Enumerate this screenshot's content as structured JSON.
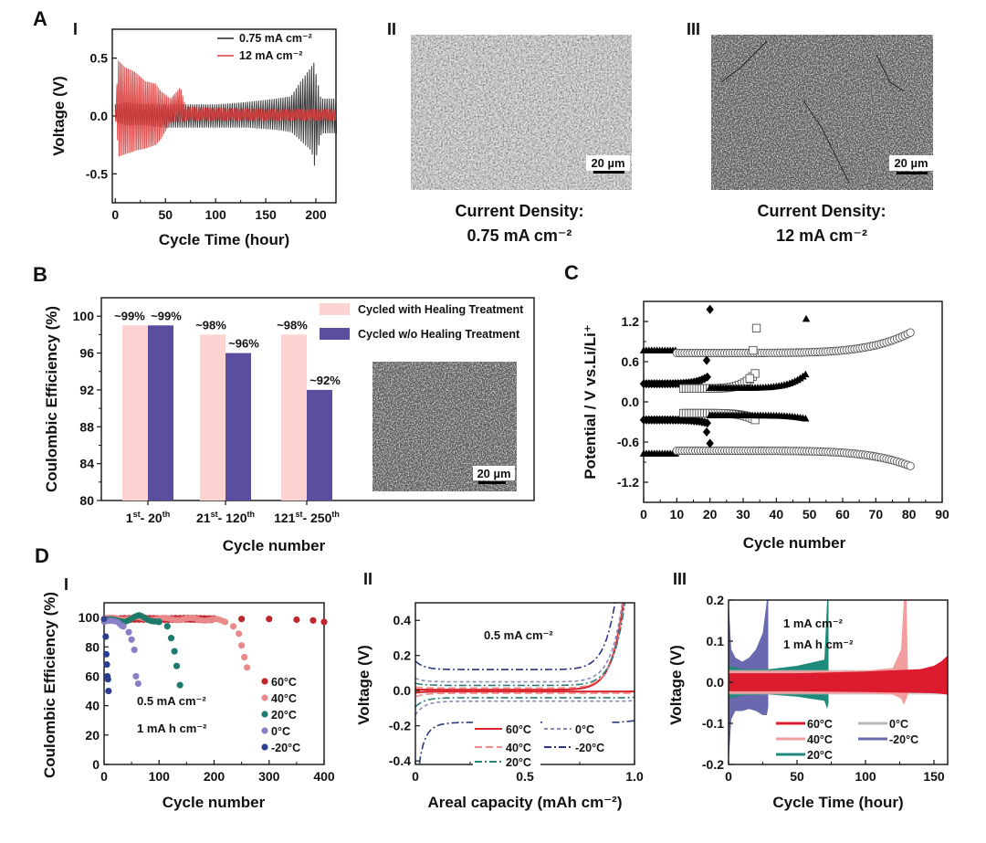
{
  "figure": {
    "panel_labels": {
      "A": "A",
      "B": "B",
      "C": "C",
      "D": "D"
    },
    "sub_labels": {
      "A_I": "I",
      "A_II": "II",
      "A_III": "III",
      "D_I": "I",
      "D_II": "II",
      "D_III": "III"
    }
  },
  "sem_images": {
    "A_II": {
      "scale_bar": "20 µm",
      "caption_line1": "Current Density:",
      "caption_line2": "0.75 mA cm⁻²",
      "tone": "light-porous"
    },
    "A_III": {
      "scale_bar": "20 µm",
      "caption_line1": "Current Density:",
      "caption_line2": "12 mA cm⁻²",
      "tone": "dark-dense"
    },
    "B_inset": {
      "scale_bar": "20 µm",
      "tone": "dark-dense"
    }
  },
  "chart_data": [
    {
      "id": "A_I",
      "type": "line",
      "title": "",
      "xlabel": "Cycle Time (hour)",
      "ylabel": "Voltage (V)",
      "xlim": [
        -3,
        220
      ],
      "ylim": [
        -0.75,
        0.75
      ],
      "xticks": [
        0,
        50,
        100,
        150,
        200
      ],
      "yticks": [
        -0.5,
        0.0,
        0.5
      ],
      "ytick_labels": [
        "-0.5",
        "0.0",
        "0.5"
      ],
      "legend": "top-right",
      "series": [
        {
          "name": "0.75 mA cm⁻²",
          "color": "#222222",
          "envelope": {
            "x": [
              0,
              10,
              30,
              50,
              80,
              100,
              130,
              160,
              175,
              185,
              195,
              198,
              205,
              220
            ],
            "upper": [
              0.1,
              0.12,
              0.1,
              0.1,
              0.1,
              0.1,
              0.12,
              0.15,
              0.17,
              0.3,
              0.42,
              0.46,
              0.15,
              0.15
            ],
            "lower": [
              -0.05,
              -0.08,
              -0.08,
              -0.1,
              -0.1,
              -0.1,
              -0.1,
              -0.12,
              -0.14,
              -0.22,
              -0.3,
              -0.43,
              -0.15,
              -0.15
            ]
          }
        },
        {
          "name": "12 mA cm⁻²",
          "color": "#d93a3a",
          "envelope": {
            "x": [
              0,
              3,
              10,
              20,
              30,
              40,
              45,
              55,
              65,
              70,
              100,
              150,
              200,
              220
            ],
            "upper": [
              0.05,
              0.48,
              0.42,
              0.38,
              0.3,
              0.28,
              0.22,
              0.15,
              0.25,
              0.08,
              0.07,
              0.06,
              0.06,
              0.06
            ],
            "lower": [
              -0.05,
              -0.35,
              -0.33,
              -0.3,
              -0.28,
              -0.25,
              -0.2,
              -0.05,
              -0.05,
              -0.04,
              -0.04,
              -0.04,
              -0.04,
              -0.04
            ]
          }
        }
      ]
    },
    {
      "id": "B",
      "type": "bar",
      "title": "",
      "xlabel": "Cycle number",
      "ylabel": "Coulombic Efficiency (%)",
      "ylim": [
        80,
        102
      ],
      "yticks": [
        80,
        84,
        88,
        92,
        96,
        100
      ],
      "categories": [
        {
          "main": "1",
          "sup1": "st",
          "mid": "- 20",
          "sup2": "th"
        },
        {
          "main": "21",
          "sup1": "st",
          "mid": "- 120",
          "sup2": "th"
        },
        {
          "main": "121",
          "sup1": "st",
          "mid": "- 250",
          "sup2": "th"
        }
      ],
      "legend": "top-right",
      "series": [
        {
          "name": "Cycled with Healing Treatment",
          "color": "#fdd3d2",
          "values": [
            99,
            98,
            98
          ],
          "labels": [
            "~99%",
            "~98%",
            "~98%"
          ]
        },
        {
          "name": "Cycled w/o Healing Treatment",
          "color": "#5a4f9e",
          "values": [
            99,
            96,
            92
          ],
          "labels": [
            "~99%",
            "~96%",
            "~92%"
          ]
        }
      ]
    },
    {
      "id": "C",
      "type": "scatter",
      "title": "",
      "xlabel": "Cycle number",
      "ylabel": "Potential / V vs.Li/Li⁺",
      "xlim": [
        0,
        90
      ],
      "ylim": [
        -1.5,
        1.5
      ],
      "xticks": [
        0,
        10,
        20,
        30,
        40,
        50,
        60,
        70,
        80,
        90
      ],
      "yticks": [
        -1.2,
        -0.6,
        0.0,
        0.6,
        1.2
      ],
      "ytick_labels": [
        "-1.2",
        "-0.6",
        "0.0",
        "0.6",
        "1.2"
      ],
      "series": [
        {
          "name": "filled-triangle-high",
          "marker": "triangle-filled",
          "x_range": [
            0,
            10
          ],
          "y_const": 0.77
        },
        {
          "name": "filled-triangle-low",
          "marker": "triangle-filled",
          "x_range": [
            0,
            10
          ],
          "y_const": -0.77
        },
        {
          "name": "open-circle",
          "marker": "circle-open",
          "x_range": [
            10,
            81
          ],
          "upper_base": 0.73,
          "lower_base": -0.73,
          "upper_end": 1.05,
          "lower_end": -0.97
        },
        {
          "name": "filled-diamond",
          "marker": "diamond-filled",
          "x_range": [
            0,
            20
          ],
          "upper_base": 0.27,
          "lower_base": -0.27,
          "upper_end": 0.4,
          "lower_end": -0.33,
          "outliers": [
            [
              19,
              0.62
            ],
            [
              19,
              -0.45
            ],
            [
              20,
              -0.62
            ],
            [
              20,
              1.38
            ]
          ]
        },
        {
          "name": "open-square",
          "marker": "square-open",
          "x_range": [
            12,
            34
          ],
          "upper_base": 0.2,
          "lower_base": -0.17,
          "upper_end": 0.45,
          "lower_end": -0.28,
          "outliers": [
            [
              32,
              0.35
            ],
            [
              33,
              0.77
            ],
            [
              34,
              1.1
            ]
          ]
        },
        {
          "name": "filled-triangle",
          "marker": "triangle-filled",
          "x_range": [
            20,
            49
          ],
          "upper_base": 0.21,
          "lower_base": -0.2,
          "upper_end": 0.42,
          "lower_end": -0.25,
          "outliers": [
            [
              49,
              1.24
            ]
          ]
        }
      ]
    },
    {
      "id": "D_I",
      "type": "scatter",
      "title": "",
      "xlabel": "Cycle number",
      "ylabel": "Coulombic Efficiency (%)",
      "xlim": [
        0,
        400
      ],
      "ylim": [
        0,
        110
      ],
      "xticks": [
        0,
        100,
        200,
        300,
        400
      ],
      "yticks": [
        0,
        20,
        40,
        60,
        80,
        100
      ],
      "annotations": [
        "0.5 mA cm⁻²",
        "1 mA h cm⁻²"
      ],
      "legend": "bottom-right",
      "series": [
        {
          "name": "60°C",
          "color": "#c0262d",
          "x": [
            0,
            50,
            100,
            150,
            200,
            250,
            300,
            350,
            380,
            400
          ],
          "y": [
            99,
            99,
            99,
            99,
            99,
            99,
            99,
            98.5,
            98,
            97
          ]
        },
        {
          "name": "40°C",
          "color": "#e88a8a",
          "x": [
            0,
            50,
            100,
            150,
            200,
            220,
            235,
            245,
            250,
            255,
            260
          ],
          "y": [
            99,
            99.5,
            99,
            99,
            98.5,
            97,
            94,
            89,
            81,
            73,
            66
          ]
        },
        {
          "name": "20°C",
          "color": "#1d7a6c",
          "x": [
            0,
            20,
            40,
            65,
            80,
            100,
            115,
            122,
            128,
            132,
            138
          ],
          "y": [
            98,
            98,
            98,
            101,
            99,
            97,
            94,
            86,
            77,
            67,
            54
          ]
        },
        {
          "name": "0°C",
          "color": "#8a80c6",
          "x": [
            0,
            10,
            25,
            35,
            45,
            50,
            55,
            58,
            62
          ],
          "y": [
            97,
            97,
            97,
            94,
            90,
            85,
            78,
            60,
            55
          ]
        },
        {
          "name": "-20°C",
          "color": "#2b3d8f",
          "x": [
            0,
            1,
            2,
            3,
            4,
            5,
            6,
            7,
            8
          ],
          "y": [
            99,
            97,
            92,
            87,
            75,
            68,
            60,
            58,
            50
          ]
        }
      ]
    },
    {
      "id": "D_II",
      "type": "line",
      "title": "",
      "xlabel": "Areal capacity (mAh cm⁻²)",
      "ylabel": "Voltage (V)",
      "xlim": [
        0,
        1.0
      ],
      "ylim": [
        -0.42,
        0.5
      ],
      "xticks": [
        0,
        0.5,
        1.0
      ],
      "xtick_labels": [
        "0",
        "0.5",
        "1.0"
      ],
      "yticks": [
        -0.4,
        -0.2,
        0.0,
        0.2,
        0.4
      ],
      "ytick_labels": [
        "-0.4",
        "-0.2",
        "0.0",
        "0.2",
        "0.4"
      ],
      "annotations": [
        "0.5 mA cm⁻²"
      ],
      "legend": "bottom-center",
      "series": [
        {
          "name": "60°C",
          "color": "#d9262e",
          "dash": "solid",
          "plateau_up": 0.005,
          "plateau_down": -0.005,
          "end_x": 0.955
        },
        {
          "name": "40°C",
          "color": "#f08c8c",
          "dash": "dash",
          "plateau_up": 0.015,
          "plateau_down": -0.015,
          "end_x": 0.96
        },
        {
          "name": "20°C",
          "color": "#2a7f7a",
          "dash": "dashdot",
          "plateau_up": 0.03,
          "plateau_down": -0.04,
          "end_x": 0.965
        },
        {
          "name": "0°C",
          "color": "#8a88b8",
          "dash": "dot",
          "plateau_up": 0.05,
          "plateau_down": -0.06,
          "end_x": 0.955
        },
        {
          "name": "-20°C",
          "color": "#2e3680",
          "dash": "dashdot",
          "plateau_up": 0.12,
          "plateau_down": -0.18,
          "end_x": 0.93
        }
      ]
    },
    {
      "id": "D_III",
      "type": "area",
      "title": "",
      "xlabel": "Cycle Time (hour)",
      "ylabel": "Voltage (V)",
      "xlim": [
        0,
        160
      ],
      "ylim": [
        -0.2,
        0.2
      ],
      "xticks": [
        0,
        50,
        100,
        150
      ],
      "yticks": [
        -0.2,
        -0.1,
        0.0,
        0.1,
        0.2
      ],
      "ytick_labels": [
        "-0.2",
        "-0.1",
        "0.0",
        "0.1",
        "0.2"
      ],
      "annotations": [
        "1 mA  cm⁻²",
        "1 mA h cm⁻²"
      ],
      "legend": "bottom-center",
      "series": [
        {
          "name": "-20°C",
          "color": "#6a68ae",
          "x": [
            0,
            2,
            5,
            10,
            15,
            20,
            25,
            28,
            29
          ],
          "upper": [
            0.2,
            0.08,
            0.06,
            0.05,
            0.06,
            0.08,
            0.12,
            0.2,
            0.2
          ],
          "lower": [
            -0.2,
            -0.09,
            -0.07,
            -0.07,
            -0.065,
            -0.07,
            -0.08,
            -0.08,
            -0.06
          ]
        },
        {
          "name": "20°C",
          "color": "#1e8a7c",
          "x": [
            0,
            10,
            30,
            50,
            70,
            72,
            73
          ],
          "upper": [
            0.04,
            0.032,
            0.032,
            0.04,
            0.055,
            0.2,
            0.2
          ],
          "lower": [
            -0.04,
            -0.032,
            -0.03,
            -0.035,
            -0.045,
            -0.065,
            -0.05
          ]
        },
        {
          "name": "0°C",
          "color": "#b9b9b9",
          "x": [
            0,
            160
          ],
          "upper": [
            0.03,
            0.03
          ],
          "lower": [
            -0.03,
            -0.03
          ]
        },
        {
          "name": "40°C",
          "color": "#f29ea0",
          "x": [
            0,
            100,
            120,
            126,
            128,
            130,
            131
          ],
          "upper": [
            0.028,
            0.028,
            0.035,
            0.08,
            0.2,
            0.2,
            0.03
          ],
          "lower": [
            -0.028,
            -0.028,
            -0.03,
            -0.04,
            -0.055,
            -0.04,
            -0.03
          ]
        },
        {
          "name": "60°C",
          "color": "#dc1c2e",
          "x": [
            0,
            50,
            100,
            140,
            150,
            155,
            160
          ],
          "upper": [
            0.022,
            0.022,
            0.026,
            0.032,
            0.04,
            0.05,
            0.065
          ],
          "lower": [
            -0.022,
            -0.022,
            -0.024,
            -0.026,
            -0.027,
            -0.028,
            -0.03
          ]
        }
      ]
    }
  ]
}
